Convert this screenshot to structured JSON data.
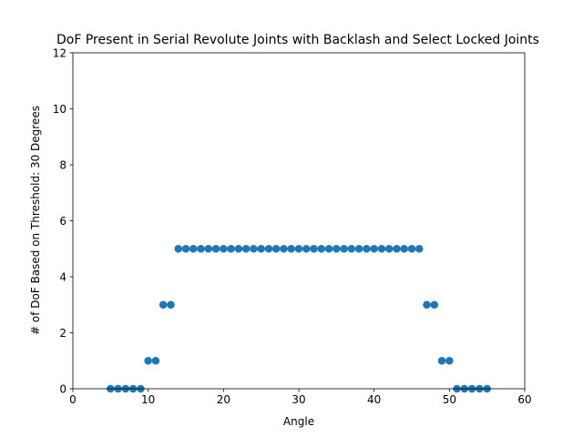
{
  "chart_data": {
    "type": "scatter",
    "title": "DoF Present in Serial Revolute Joints with Backlash and Select Locked Joints",
    "xlabel": "Angle",
    "ylabel": "# of DoF Based on Threshold: 30 Degrees",
    "xlim": [
      0,
      60
    ],
    "ylim": [
      0,
      12
    ],
    "xticks": [
      0,
      10,
      20,
      30,
      40,
      50,
      60
    ],
    "yticks": [
      0,
      2,
      4,
      6,
      8,
      10,
      12
    ],
    "grid": false,
    "marker_color": "#1f77b4",
    "series": [
      {
        "x": [
          5,
          6,
          7,
          8,
          9,
          10,
          11,
          12,
          13,
          14,
          15,
          16,
          17,
          18,
          19,
          20,
          21,
          22,
          23,
          24,
          25,
          26,
          27,
          28,
          29,
          30,
          31,
          32,
          33,
          34,
          35,
          36,
          37,
          38,
          39,
          40,
          41,
          42,
          43,
          44,
          45,
          46,
          47,
          48,
          49,
          50,
          51,
          52,
          53,
          54,
          55
        ],
        "y": [
          0,
          0,
          0,
          0,
          0,
          1,
          1,
          3,
          3,
          5,
          5,
          5,
          5,
          5,
          5,
          5,
          5,
          5,
          5,
          5,
          5,
          5,
          5,
          5,
          5,
          5,
          5,
          5,
          5,
          5,
          5,
          5,
          5,
          5,
          5,
          5,
          5,
          5,
          5,
          5,
          5,
          5,
          3,
          3,
          1,
          1,
          0,
          0,
          0,
          0,
          0
        ]
      }
    ]
  }
}
